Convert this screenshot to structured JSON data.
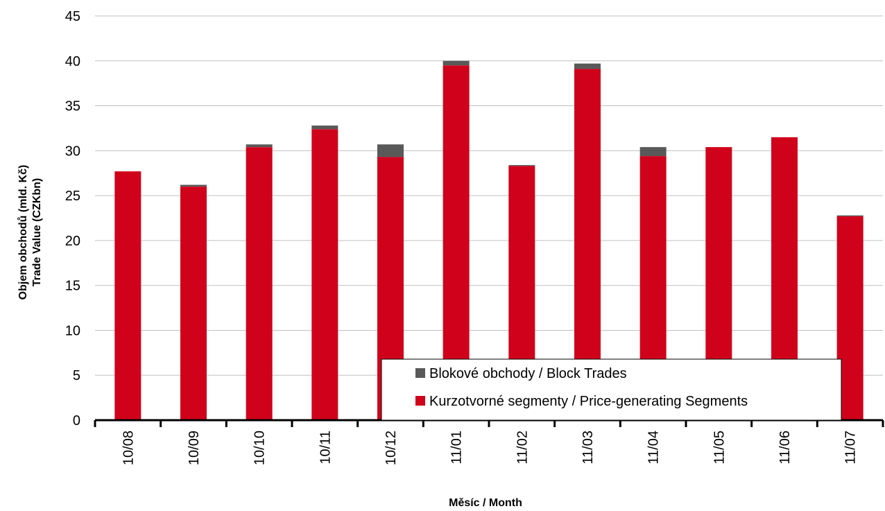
{
  "chart_data": {
    "type": "bar",
    "stacked": true,
    "categories": [
      "10/08",
      "10/09",
      "10/10",
      "10/11",
      "10/12",
      "11/01",
      "11/02",
      "11/03",
      "11/04",
      "11/05",
      "11/06",
      "11/07"
    ],
    "series": [
      {
        "name": "Kurzotvorné segmenty / Price-generating Segments",
        "color": "#d0021b",
        "values": [
          27.7,
          26.0,
          30.4,
          32.4,
          29.3,
          39.5,
          28.3,
          39.1,
          29.4,
          30.4,
          31.5,
          22.7
        ]
      },
      {
        "name": "Blokové obchody / Block Trades",
        "color": "#595959",
        "values": [
          0.0,
          0.2,
          0.3,
          0.4,
          1.4,
          0.5,
          0.1,
          0.6,
          1.0,
          0.0,
          0.0,
          0.1
        ]
      }
    ],
    "ylabel_line1": "Objem obchodů (mld. Kč)",
    "ylabel_line2": "Trade Value (CZKbn)",
    "xlabel": "Měsíc / Month",
    "ylim": [
      0,
      45
    ],
    "yticks": [
      0,
      5,
      10,
      15,
      20,
      25,
      30,
      35,
      40,
      45
    ],
    "grid": true,
    "legend_position": "bottom-right"
  }
}
